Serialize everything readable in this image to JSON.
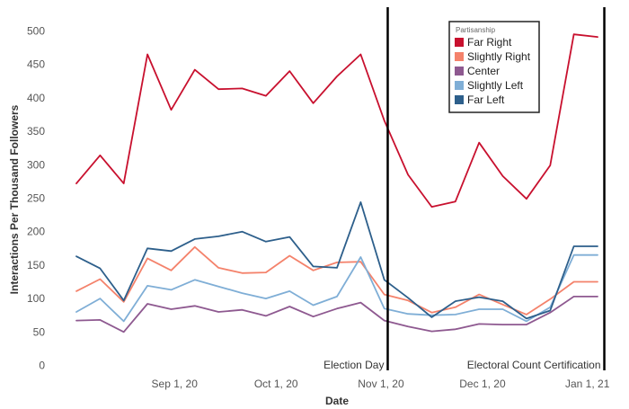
{
  "chart_data": {
    "type": "line",
    "xlabel": "Date",
    "ylabel": "Interactions Per Thousand Followers",
    "ylim": [
      0,
      510
    ],
    "yticks": [
      0,
      50,
      100,
      150,
      200,
      250,
      300,
      350,
      400,
      450,
      500
    ],
    "x": [
      "2020-08-03",
      "2020-08-10",
      "2020-08-17",
      "2020-08-24",
      "2020-08-31",
      "2020-09-07",
      "2020-09-14",
      "2020-09-21",
      "2020-09-28",
      "2020-10-05",
      "2020-10-12",
      "2020-10-19",
      "2020-10-26",
      "2020-11-02",
      "2020-11-09",
      "2020-11-16",
      "2020-11-23",
      "2020-11-30",
      "2020-12-07",
      "2020-12-14",
      "2020-12-21",
      "2020-12-28",
      "2021-01-04"
    ],
    "xticks": [
      {
        "date": "2020-09-01",
        "label": "Sep 1, 20"
      },
      {
        "date": "2020-10-01",
        "label": "Oct 1, 20"
      },
      {
        "date": "2020-11-01",
        "label": "Nov 1, 20"
      },
      {
        "date": "2020-12-01",
        "label": "Dec 1, 20"
      },
      {
        "date": "2021-01-01",
        "label": "Jan 1, 21"
      }
    ],
    "legend": {
      "title": "Partisanship",
      "position": "top-right"
    },
    "series": [
      {
        "name": "Far Right",
        "color": "#C8102E",
        "values": [
          272,
          314,
          272,
          465,
          382,
          442,
          413,
          414,
          403,
          440,
          392,
          432,
          465,
          366,
          285,
          237,
          245,
          333,
          283,
          249,
          299,
          495,
          491
        ]
      },
      {
        "name": "Slightly Right",
        "color": "#F4826B",
        "values": [
          111,
          129,
          95,
          160,
          142,
          177,
          146,
          138,
          139,
          164,
          142,
          154,
          155,
          106,
          97,
          79,
          87,
          106,
          91,
          76,
          99,
          125,
          125
        ]
      },
      {
        "name": "Center",
        "color": "#8E5990",
        "values": [
          67,
          68,
          50,
          92,
          84,
          89,
          80,
          83,
          74,
          88,
          73,
          85,
          94,
          67,
          58,
          51,
          54,
          62,
          61,
          61,
          79,
          103,
          103
        ]
      },
      {
        "name": "Slightly Left",
        "color": "#7FAED6",
        "values": [
          80,
          100,
          66,
          119,
          113,
          128,
          118,
          108,
          100,
          111,
          90,
          103,
          162,
          85,
          77,
          75,
          76,
          84,
          84,
          66,
          87,
          165,
          165
        ]
      },
      {
        "name": "Far Left",
        "color": "#2D5F8B",
        "values": [
          163,
          145,
          97,
          175,
          171,
          189,
          193,
          200,
          185,
          192,
          148,
          146,
          244,
          128,
          101,
          72,
          96,
          102,
          96,
          70,
          82,
          178,
          178
        ]
      }
    ],
    "annotations": [
      {
        "date": "2020-11-03",
        "label": "Election Day"
      },
      {
        "date": "2021-01-06",
        "label": "Electoral Count Certification"
      }
    ]
  }
}
